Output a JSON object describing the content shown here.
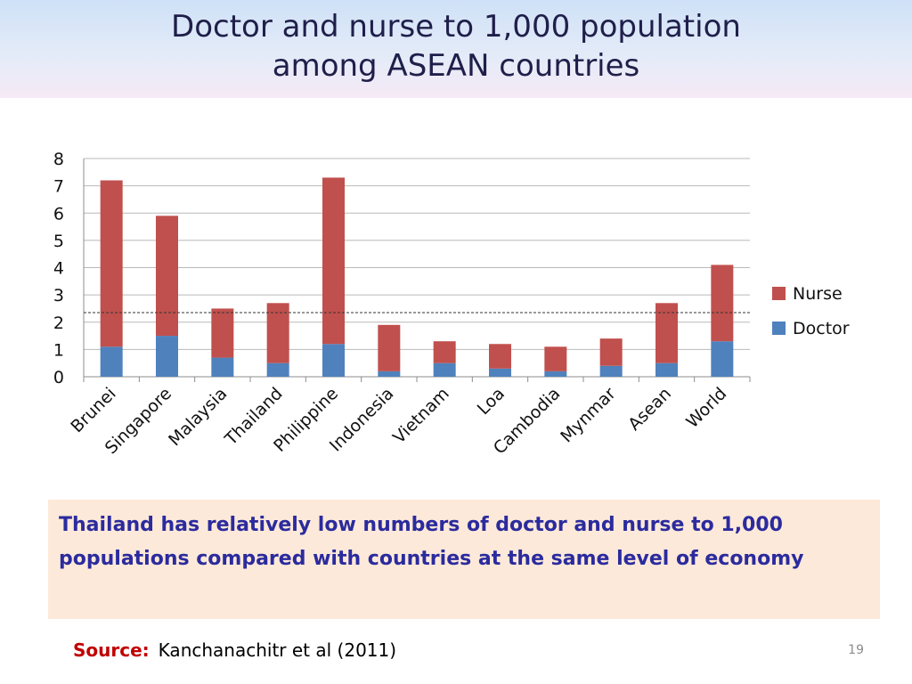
{
  "slide": {
    "title_line1": "Doctor and nurse to 1,000 population",
    "title_line2": "among ASEAN countries",
    "callout": "Thailand has relatively low numbers of doctor and nurse to 1,000 populations compared with countries at the same level of economy",
    "source_label": "Source:",
    "source_text": "Kanchanachitr et al (2011)",
    "page_number": "19"
  },
  "colors": {
    "doctor": "#4f81bd",
    "nurse": "#c0504d",
    "title_text": "#1f1f4a",
    "callout_text": "#2b2b9e",
    "callout_bg": "#fde9d9",
    "source_label": "#c00000"
  },
  "chart_data": {
    "type": "bar",
    "stacked": true,
    "categories": [
      "Brunei",
      "Singapore",
      "Malaysia",
      "Thailand",
      "Philippine",
      "Indonesia",
      "Vietnam",
      "Loa",
      "Cambodia",
      "Mynmar",
      "Asean",
      "World"
    ],
    "series": [
      {
        "name": "Doctor",
        "color": "#4f81bd",
        "values": [
          1.1,
          1.5,
          0.7,
          0.5,
          1.2,
          0.2,
          0.5,
          0.3,
          0.2,
          0.4,
          0.5,
          1.3
        ]
      },
      {
        "name": "Nurse",
        "color": "#c0504d",
        "values": [
          6.1,
          4.4,
          1.8,
          2.2,
          6.1,
          1.7,
          0.8,
          0.9,
          0.9,
          1.0,
          2.2,
          2.8
        ]
      }
    ],
    "reference_line": {
      "value": 2.35,
      "style": "dashed"
    },
    "ylim": [
      0,
      8
    ],
    "yticks": [
      0,
      1,
      2,
      3,
      4,
      5,
      6,
      7,
      8
    ],
    "grid": true,
    "legend_position": "right",
    "legend_order": [
      "Nurse",
      "Doctor"
    ],
    "xlabel": "",
    "ylabel": ""
  }
}
